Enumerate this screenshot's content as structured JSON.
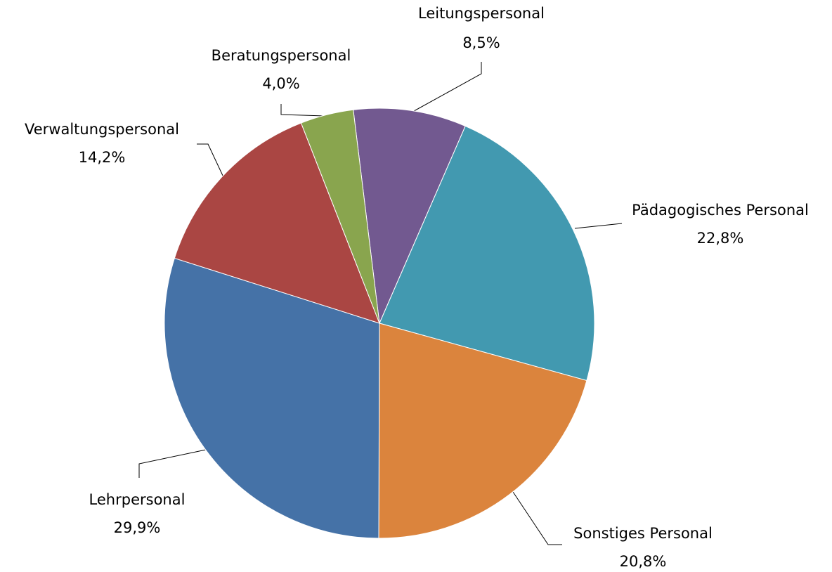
{
  "chart_data": {
    "type": "pie",
    "categories": [
      "Leitungspersonal",
      "Pädagogisches Personal",
      "Sonstiges Personal",
      "Lehrpersonal",
      "Verwaltungspersonal",
      "Beratungspersonal"
    ],
    "values": [
      8.5,
      22.8,
      20.8,
      29.9,
      14.2,
      4.0
    ],
    "value_labels": [
      "8,5%",
      "22,8%",
      "20,8%",
      "29,9%",
      "14,2%",
      "4,0%"
    ],
    "colors": [
      "#725990",
      "#4299b0",
      "#db843d",
      "#4572a7",
      "#aa4643",
      "#89a54e"
    ]
  }
}
